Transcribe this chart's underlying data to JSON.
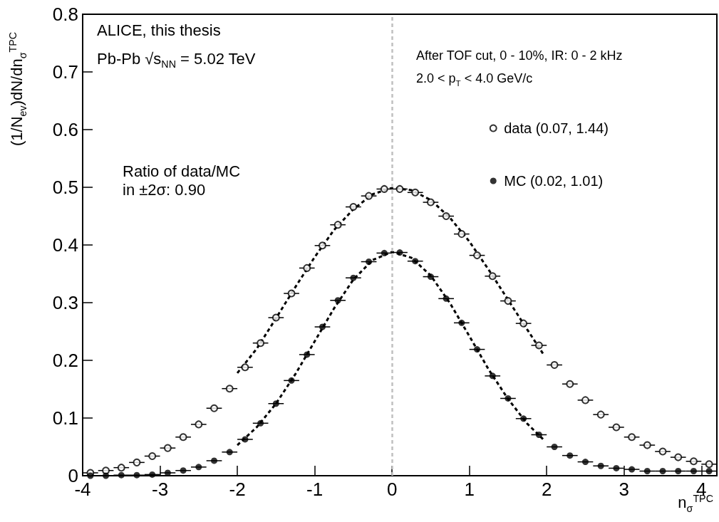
{
  "chart_data": {
    "type": "scatter",
    "xlabel": "n$_{σ}$$^{TPC}$",
    "ylabel": "(1/N$_{ev}$)dN/dn$_{σ}$$^{TPC}$",
    "annotations": [
      "ALICE, this thesis",
      "Pb-Pb √s$_{NN}$ = 5.02 TeV",
      "After TOF cut, 0 - 10%, IR: 0 - 2 kHz",
      "2.0 < p$_{T}$ < 4.0 GeV/c",
      "Ratio of data/MC",
      "in ±2σ: 0.90"
    ],
    "x": [
      -3.9,
      -3.7,
      -3.5,
      -3.3,
      -3.1,
      -2.9,
      -2.7,
      -2.5,
      -2.3,
      -2.1,
      -1.9,
      -1.7,
      -1.5,
      -1.3,
      -1.1,
      -0.9,
      -0.7,
      -0.5,
      -0.3,
      -0.1,
      0.1,
      0.3,
      0.5,
      0.7,
      0.9,
      1.1,
      1.3,
      1.5,
      1.7,
      1.9,
      2.1,
      2.3,
      2.5,
      2.7,
      2.9,
      3.1,
      3.3,
      3.5,
      3.7,
      3.9,
      4.1
    ],
    "series": [
      {
        "name": "data (0.07, 1.44)",
        "color": "#000000",
        "marker": "circle",
        "values": [
          0.005,
          0.009,
          0.014,
          0.023,
          0.034,
          0.048,
          0.067,
          0.089,
          0.117,
          0.151,
          0.188,
          0.23,
          0.274,
          0.316,
          0.36,
          0.399,
          0.435,
          0.466,
          0.485,
          0.497,
          0.497,
          0.491,
          0.474,
          0.45,
          0.419,
          0.382,
          0.346,
          0.303,
          0.264,
          0.226,
          0.192,
          0.159,
          0.131,
          0.106,
          0.084,
          0.067,
          0.053,
          0.042,
          0.032,
          0.025,
          0.02
        ],
        "xerrors": [
          0.1,
          0.1,
          0.1,
          0.1,
          0.1,
          0.1,
          0.1,
          0.1,
          0.1,
          0.1,
          0.1,
          0.1,
          0.1,
          0.1,
          0.1,
          0.1,
          0.1,
          0.1,
          0.1,
          0.1,
          0.1,
          0.1,
          0.1,
          0.1,
          0.1,
          0.1,
          0.1,
          0.1,
          0.1,
          0.1,
          0.1,
          0.1,
          0.1,
          0.1,
          0.1,
          0.1,
          0.1,
          0.1,
          0.1,
          0.1,
          0.1
        ]
      },
      {
        "name": "MC (0.02, 1.01)",
        "color": "#000000",
        "marker": "circle",
        "values": [
          0.0,
          0.0,
          0.001,
          0.001,
          0.002,
          0.005,
          0.009,
          0.015,
          0.026,
          0.041,
          0.063,
          0.091,
          0.125,
          0.165,
          0.21,
          0.258,
          0.304,
          0.343,
          0.371,
          0.386,
          0.387,
          0.372,
          0.345,
          0.307,
          0.265,
          0.219,
          0.173,
          0.134,
          0.099,
          0.071,
          0.05,
          0.035,
          0.024,
          0.017,
          0.013,
          0.011,
          0.008,
          0.008,
          0.008,
          0.008,
          0.008
        ],
        "xerrors": [
          0.1,
          0.1,
          0.1,
          0.1,
          0.1,
          0.1,
          0.1,
          0.1,
          0.1,
          0.1,
          0.1,
          0.1,
          0.1,
          0.1,
          0.1,
          0.1,
          0.1,
          0.1,
          0.1,
          0.1,
          0.1,
          0.1,
          0.1,
          0.1,
          0.1,
          0.1,
          0.1,
          0.1,
          0.1,
          0.1,
          0.1,
          0.1,
          0.1,
          0.1,
          0.1,
          0.1,
          0.1,
          0.1,
          0.1,
          0.1,
          0.1
        ]
      },
      {
        "color": "#000000",
        "type": "line",
        "marker": "none",
        "line_style": "dashed",
        "x": [
          -2,
          -1.75,
          -1.5,
          -1.25,
          -1,
          -0.75,
          -0.5,
          -0.25,
          0,
          0.25,
          0.5,
          0.75,
          1,
          1.25,
          1.5,
          1.75,
          1.97
        ],
        "values": [
          0.178,
          0.22,
          0.273,
          0.327,
          0.379,
          0.426,
          0.462,
          0.488,
          0.499,
          0.495,
          0.478,
          0.447,
          0.406,
          0.357,
          0.305,
          0.253,
          0.208
        ]
      },
      {
        "color": "#000000",
        "type": "line",
        "marker": "none",
        "line_style": "dashed",
        "x": [
          -2,
          -1.75,
          -1.5,
          -1.25,
          -1,
          -0.75,
          -0.5,
          -0.25,
          0,
          0.25,
          0.5,
          0.75,
          1,
          1.25,
          1.5,
          1.75,
          1.97
        ],
        "values": [
          0.053,
          0.084,
          0.125,
          0.176,
          0.233,
          0.29,
          0.34,
          0.374,
          0.388,
          0.378,
          0.347,
          0.299,
          0.242,
          0.184,
          0.133,
          0.09,
          0.061
        ]
      }
    ],
    "xlim": [
      -4,
      4.2
    ],
    "xticks": [
      -4,
      -3,
      -2,
      -1,
      0,
      1,
      2,
      3,
      4
    ],
    "ylim": [
      0,
      0.8
    ],
    "yticks": [
      0,
      0.1,
      0.2,
      0.3,
      0.4,
      0.5,
      0.6,
      0.7,
      0.8
    ],
    "ref_lines": [
      {
        "axis": "x",
        "value": 0,
        "color": "#c0c0c0",
        "line_style": "dashed"
      }
    ],
    "grid": false,
    "legend": "top right"
  }
}
